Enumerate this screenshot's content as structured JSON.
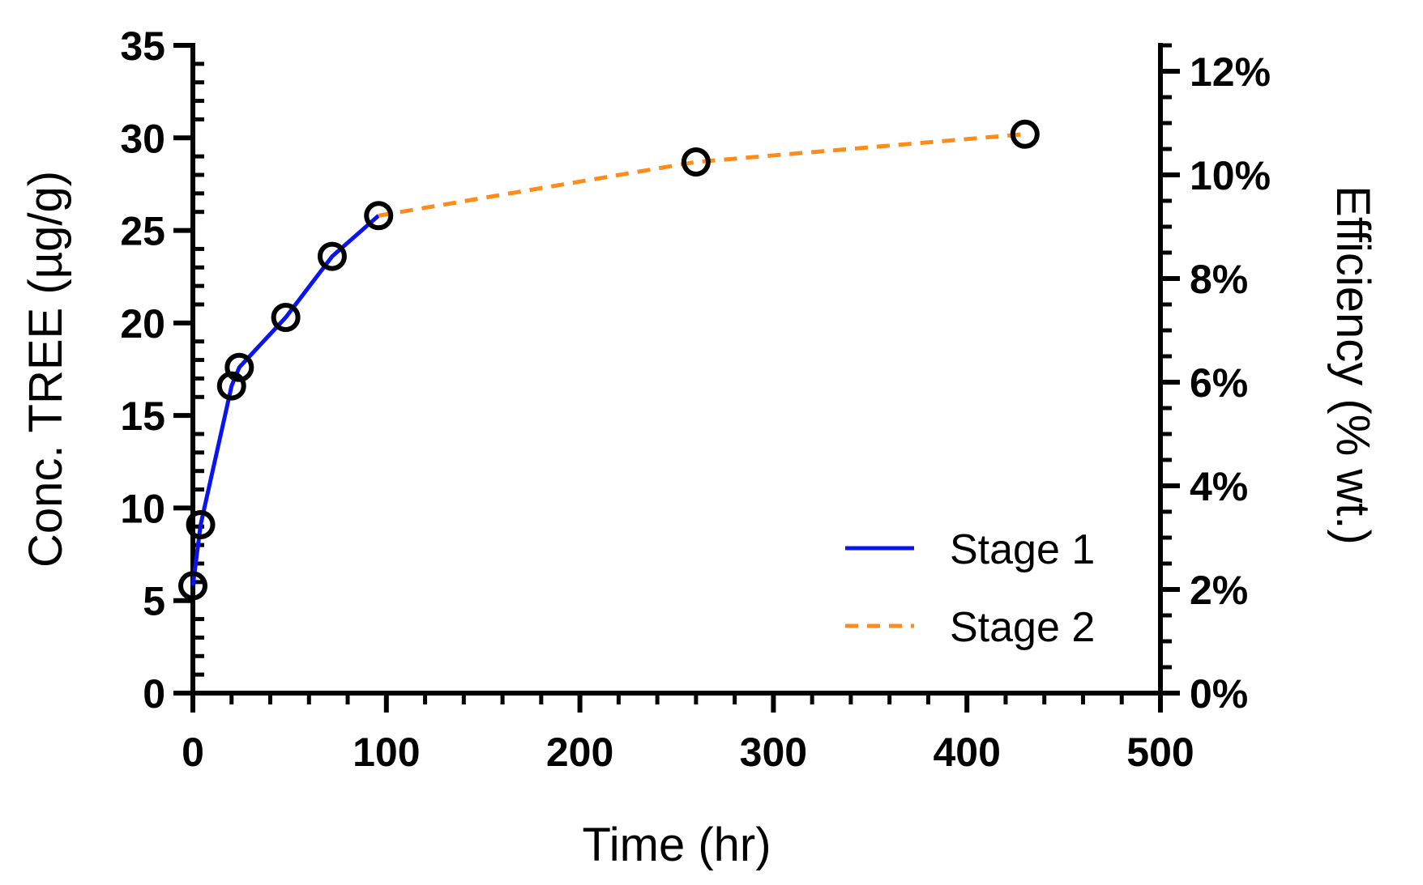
{
  "chart_data": {
    "type": "line",
    "title": "",
    "xlabel": "Time (hr)",
    "ylabel": "Conc. TREE (µg/g)",
    "y2label": "Efficiency (% wt.)",
    "xlim": [
      0,
      500
    ],
    "ylim": [
      0,
      35
    ],
    "y2lim": [
      0,
      0.125
    ],
    "x_ticks": [
      0,
      100,
      200,
      300,
      400,
      500
    ],
    "x_tick_labels": [
      "0",
      "100",
      "200",
      "300",
      "400",
      "500"
    ],
    "y_ticks": [
      0,
      5,
      10,
      15,
      20,
      25,
      30,
      35
    ],
    "y_tick_labels": [
      "0",
      "5",
      "10",
      "15",
      "20",
      "25",
      "30",
      "35"
    ],
    "y2_ticks": [
      0,
      0.02,
      0.04,
      0.06,
      0.08,
      0.1,
      0.12
    ],
    "y2_tick_labels": [
      "0%",
      "2%",
      "4%",
      "6%",
      "8%",
      "10%",
      "12%"
    ],
    "grid": false,
    "legend_position": "bottom-right",
    "series": [
      {
        "name": "Stage 1",
        "color": "#0a14f0",
        "style": "solid",
        "x": [
          0,
          4,
          20,
          24,
          48,
          72,
          96
        ],
        "y": [
          5.8,
          9.1,
          16.6,
          17.6,
          20.3,
          23.6,
          25.8
        ]
      },
      {
        "name": "Stage 2",
        "color": "#ff8c1a",
        "style": "dashed",
        "x": [
          96,
          260,
          430
        ],
        "y": [
          25.8,
          28.7,
          30.2
        ]
      }
    ],
    "points": {
      "x": [
        0,
        4,
        20,
        24,
        48,
        72,
        96,
        260,
        430
      ],
      "y": [
        5.8,
        9.1,
        16.6,
        17.6,
        20.3,
        23.6,
        25.8,
        28.7,
        30.2
      ],
      "marker": "open-circle",
      "color": "#000000"
    }
  }
}
